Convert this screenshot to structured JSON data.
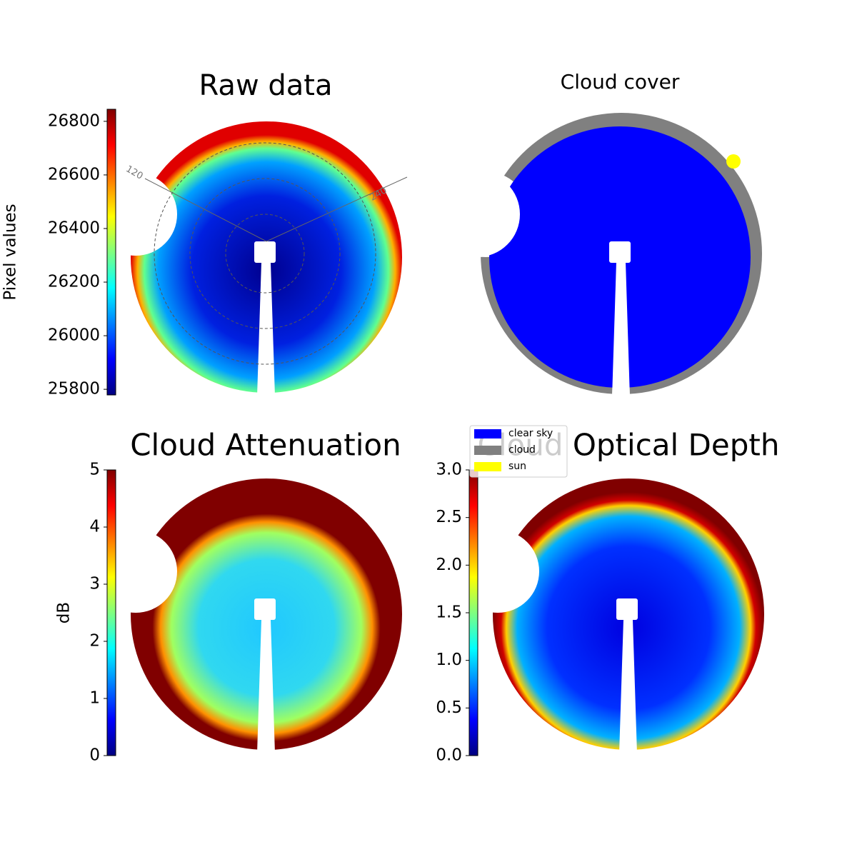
{
  "chart_data": [
    {
      "type": "image",
      "title": "Raw data",
      "colormap": "jet",
      "colorbar_label": "Pixel values",
      "clim": [
        25779,
        26845
      ],
      "cticks": [
        25800,
        26000,
        26200,
        26400,
        26600,
        26800
      ],
      "annotations": [
        "120",
        "240"
      ]
    },
    {
      "type": "mask",
      "title": "Cloud cover",
      "legend": [
        {
          "name": "clear sky",
          "color": "#0000ff"
        },
        {
          "name": "cloud",
          "color": "#808080"
        },
        {
          "name": "sun",
          "color": "#ffff00"
        }
      ]
    },
    {
      "type": "image",
      "title": "Cloud Attenuation",
      "colormap": "jet",
      "colorbar_label": "dB",
      "clim": [
        0,
        5
      ],
      "cticks": [
        0,
        1,
        2,
        3,
        4,
        5
      ]
    },
    {
      "type": "image",
      "title": "Cloud Optical Depth",
      "colormap": "jet",
      "clim": [
        0,
        3
      ],
      "cticks": [
        {
          "value": 0,
          "label": "0.0"
        },
        {
          "value": 0.5,
          "label": "0.5"
        },
        {
          "value": 1,
          "label": "1.0"
        },
        {
          "value": 1.5,
          "label": "1.5"
        },
        {
          "value": 2,
          "label": "2.0"
        },
        {
          "value": 2.5,
          "label": "2.5"
        },
        {
          "value": 3,
          "label": "3.0"
        }
      ]
    }
  ]
}
